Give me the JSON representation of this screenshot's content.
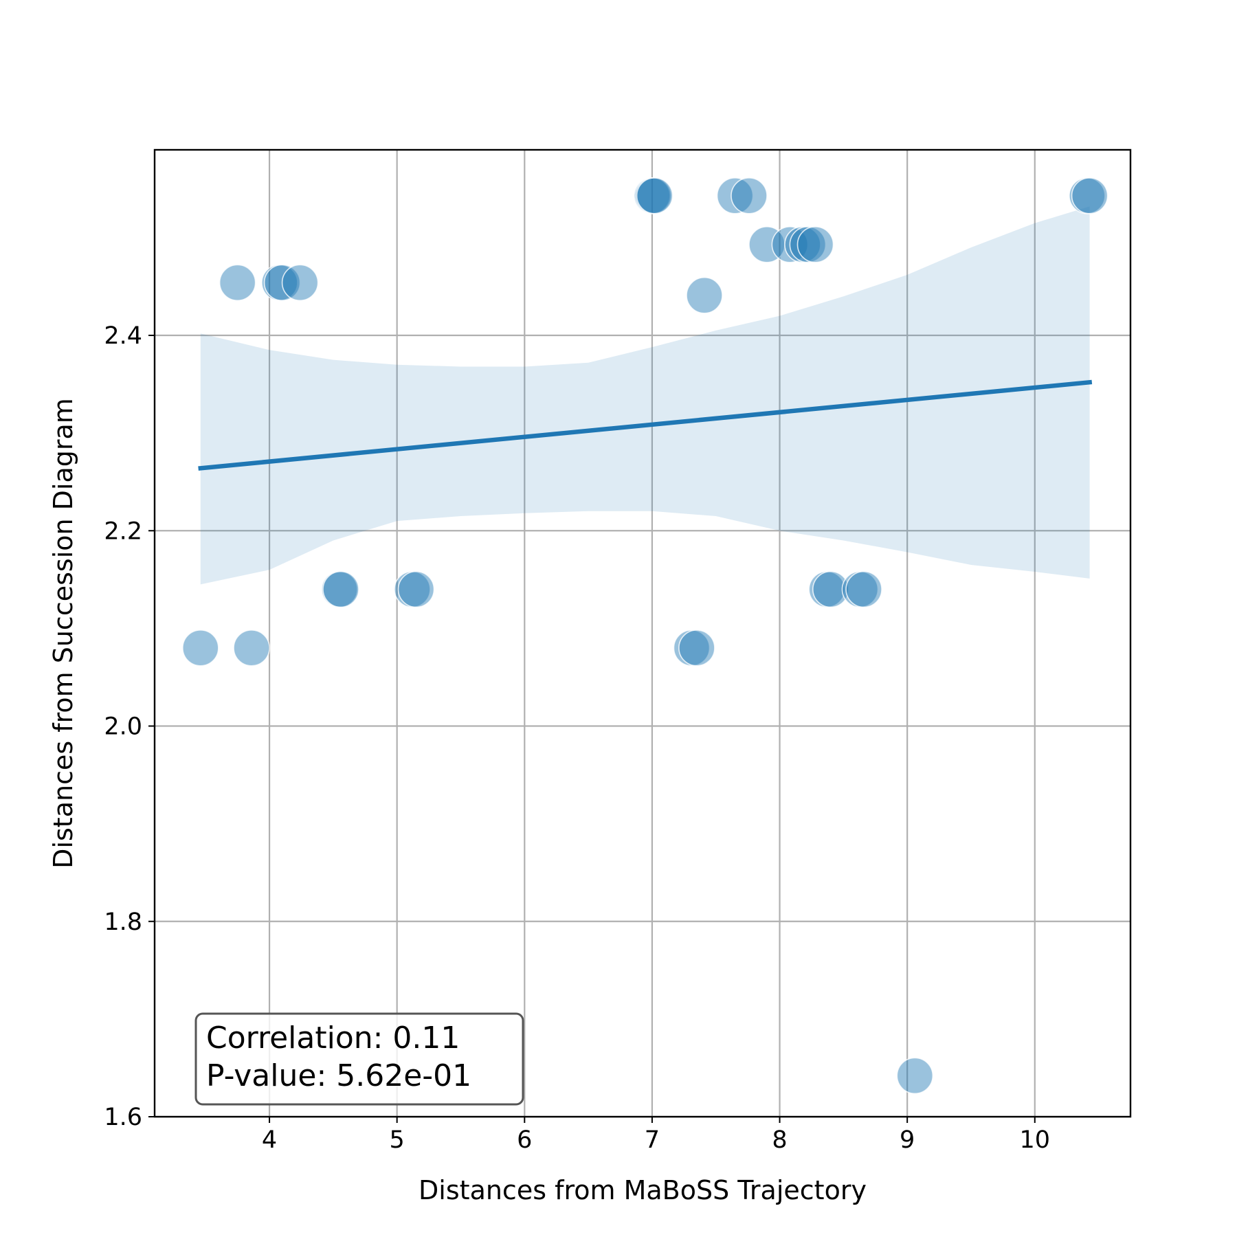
{
  "chart_data": {
    "type": "scatter",
    "xlabel": "Distances from MaBoSS Trajectory",
    "ylabel": "Distances from Succession Diagram",
    "xlim": [
      3.1,
      10.75
    ],
    "ylim": [
      1.6,
      2.59
    ],
    "xticks": [
      4,
      5,
      6,
      7,
      8,
      9,
      10
    ],
    "yticks": [
      1.6,
      1.8,
      2.0,
      2.2,
      2.4
    ],
    "ytick_labels": [
      "1.6",
      "1.8",
      "2.0",
      "2.2",
      "2.4"
    ],
    "grid": true,
    "point_color": "#1f77b4",
    "points": [
      {
        "x": 3.46,
        "y": 2.08
      },
      {
        "x": 3.86,
        "y": 2.08
      },
      {
        "x": 3.75,
        "y": 2.454
      },
      {
        "x": 4.08,
        "y": 2.454
      },
      {
        "x": 4.1,
        "y": 2.454
      },
      {
        "x": 4.24,
        "y": 2.454
      },
      {
        "x": 4.55,
        "y": 2.14
      },
      {
        "x": 4.56,
        "y": 2.14
      },
      {
        "x": 5.12,
        "y": 2.14
      },
      {
        "x": 5.15,
        "y": 2.14
      },
      {
        "x": 7.0,
        "y": 2.543
      },
      {
        "x": 7.01,
        "y": 2.543
      },
      {
        "x": 7.02,
        "y": 2.543
      },
      {
        "x": 7.31,
        "y": 2.08
      },
      {
        "x": 7.35,
        "y": 2.08
      },
      {
        "x": 7.41,
        "y": 2.441
      },
      {
        "x": 7.65,
        "y": 2.543
      },
      {
        "x": 7.76,
        "y": 2.543
      },
      {
        "x": 7.9,
        "y": 2.493
      },
      {
        "x": 8.08,
        "y": 2.493
      },
      {
        "x": 8.18,
        "y": 2.493
      },
      {
        "x": 8.22,
        "y": 2.493
      },
      {
        "x": 8.28,
        "y": 2.493
      },
      {
        "x": 8.37,
        "y": 2.14
      },
      {
        "x": 8.4,
        "y": 2.14
      },
      {
        "x": 8.63,
        "y": 2.14
      },
      {
        "x": 8.66,
        "y": 2.14
      },
      {
        "x": 9.06,
        "y": 1.642
      },
      {
        "x": 10.41,
        "y": 2.543
      },
      {
        "x": 10.43,
        "y": 2.543
      }
    ],
    "regression": {
      "x": [
        3.46,
        10.43
      ],
      "y": [
        2.264,
        2.352
      ],
      "color": "#1f77b4"
    },
    "confidence_band": {
      "color": "#1f77b4",
      "x": [
        3.46,
        4.0,
        4.5,
        5.0,
        5.5,
        6.0,
        6.5,
        7.0,
        7.5,
        8.0,
        8.5,
        9.0,
        9.5,
        10.0,
        10.43
      ],
      "upper": [
        2.402,
        2.385,
        2.375,
        2.37,
        2.368,
        2.368,
        2.372,
        2.388,
        2.405,
        2.42,
        2.44,
        2.462,
        2.49,
        2.515,
        2.532
      ],
      "lower": [
        2.145,
        2.16,
        2.19,
        2.21,
        2.215,
        2.218,
        2.22,
        2.22,
        2.215,
        2.2,
        2.19,
        2.178,
        2.165,
        2.158,
        2.151
      ]
    },
    "annotation": {
      "lines": [
        "Correlation: 0.11",
        "P-value: 5.62e-01"
      ],
      "position": "bottom-left"
    }
  }
}
